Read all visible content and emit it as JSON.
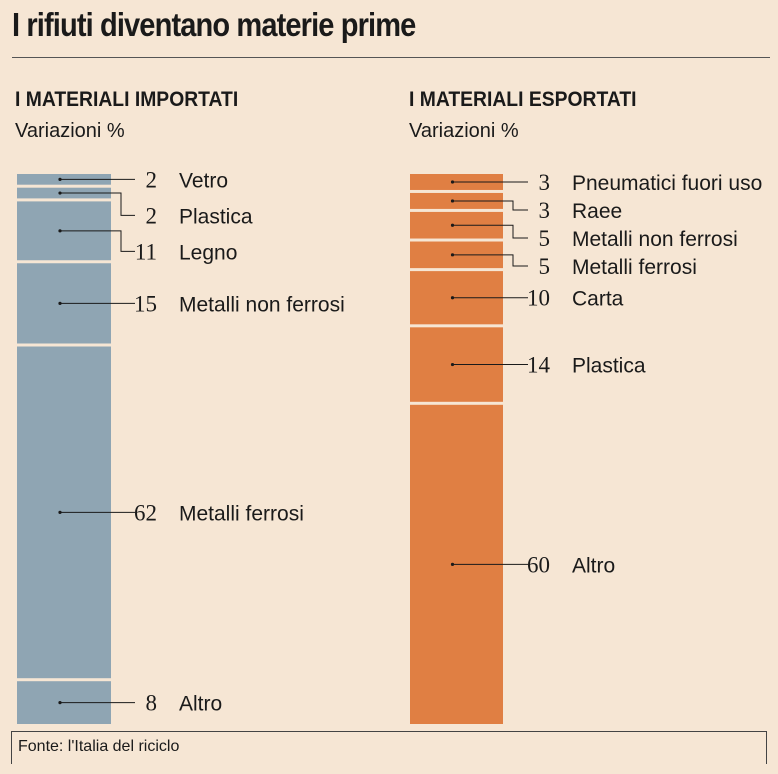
{
  "title": "I rifiuti diventano materie prime",
  "source": "Fonte: l'Italia del riciclo",
  "chart_data": [
    {
      "type": "bar",
      "stacked": true,
      "title": "I MATERIALI IMPORTATI",
      "subtitle": "Variazioni %",
      "color": "#8fa5b3",
      "segments": [
        {
          "label": "Vetro",
          "value": 2
        },
        {
          "label": "Plastica",
          "value": 2
        },
        {
          "label": "Legno",
          "value": 11
        },
        {
          "label": "Metalli non ferrosi",
          "value": 15
        },
        {
          "label": "Metalli ferrosi",
          "value": 62
        },
        {
          "label": "Altro",
          "value": 8
        }
      ]
    },
    {
      "type": "bar",
      "stacked": true,
      "title": "I MATERIALI ESPORTATI",
      "subtitle": "Variazioni %",
      "color": "#e07f43",
      "segments": [
        {
          "label": "Pneumatici fuori uso",
          "value": 3
        },
        {
          "label": "Raee",
          "value": 3
        },
        {
          "label": "Metalli non ferrosi",
          "value": 5
        },
        {
          "label": "Metalli ferrosi",
          "value": 5
        },
        {
          "label": "Carta",
          "value": 10
        },
        {
          "label": "Plastica",
          "value": 14
        },
        {
          "label": "Altro",
          "value": 60
        }
      ]
    }
  ]
}
